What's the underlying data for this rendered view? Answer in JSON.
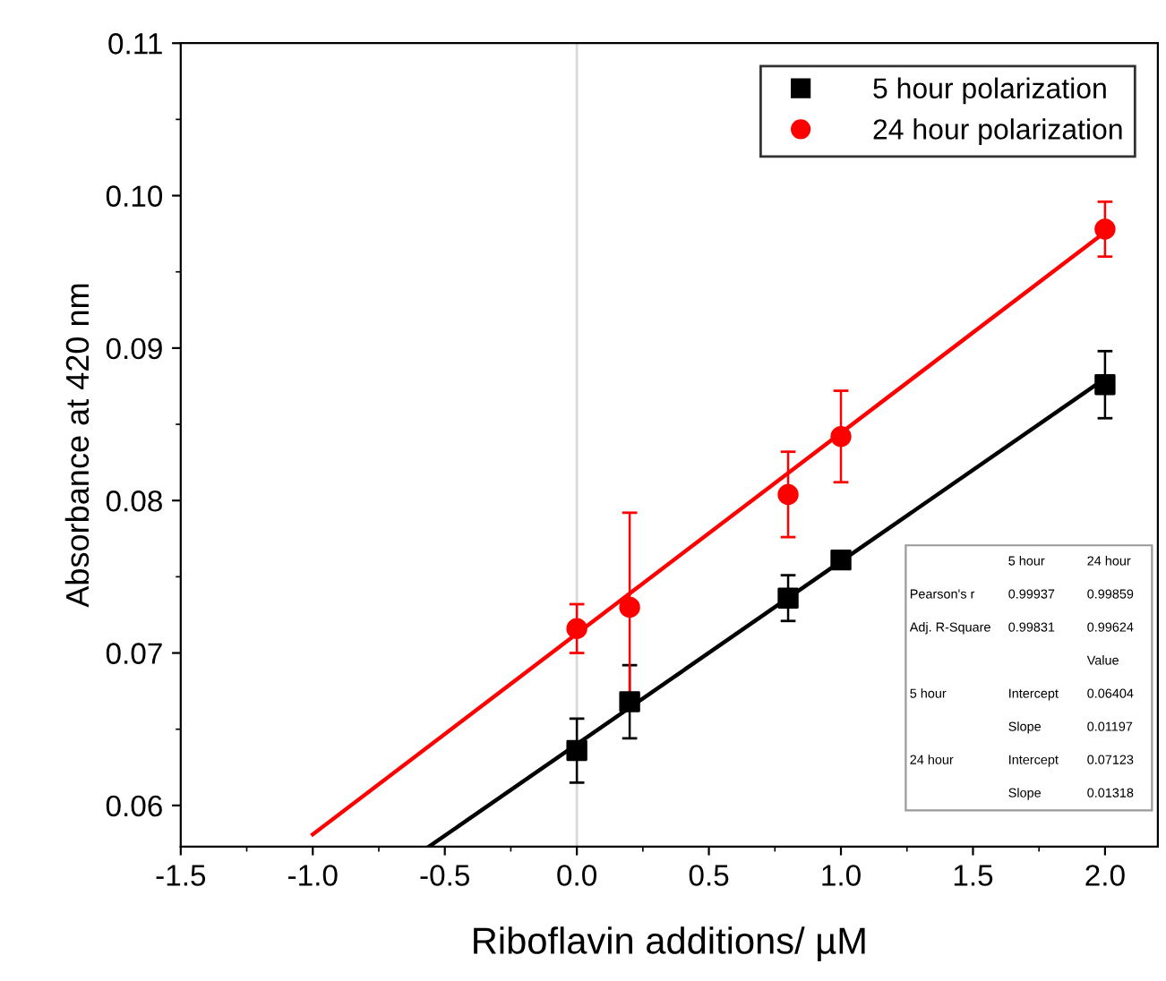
{
  "chart_data": {
    "type": "scatter",
    "xlabel": "Riboflavin additions/ µM",
    "ylabel": "Absorbance at 420 nm",
    "xlim": [
      -1.5,
      2.2
    ],
    "xticks": [
      -1.5,
      {
        "value": -1.0,
        "label": "-1.0"
      },
      -0.5,
      {
        "value": 0.0,
        "label": "0.0"
      },
      0.5,
      {
        "value": 1.0,
        "label": "1.0"
      },
      1.5,
      {
        "value": 2.0,
        "label": "2.0"
      }
    ],
    "ylim": [
      0.0573,
      0.11
    ],
    "yticks": [
      0.06,
      0.07,
      0.08,
      0.09,
      {
        "value": 0.1,
        "label": "0.10"
      },
      0.11
    ],
    "grid": false,
    "legend": "top right",
    "series": [
      {
        "name": "5 hour polarization",
        "marker": "square",
        "color": "#000000",
        "x": [
          0,
          0.2,
          0.8,
          1.0,
          2.0
        ],
        "values": [
          0.0636,
          0.0668,
          0.0736,
          0.0761,
          0.0876
        ],
        "errors": [
          0.0021,
          0.0024,
          0.0015,
          0.0005,
          0.0022
        ]
      },
      {
        "name": "24 hour polarization",
        "marker": "circle",
        "color": "#ff0000",
        "x": [
          0,
          0.2,
          0.8,
          1.0,
          2.0
        ],
        "values": [
          0.0716,
          0.073,
          0.0804,
          0.0842,
          0.0978
        ],
        "errors": [
          0.0016,
          0.0062,
          0.0028,
          0.003,
          0.0018
        ]
      },
      {
        "type": "line",
        "color": "#000000",
        "x": [
          -0.56,
          2.0
        ],
        "values": [
          0.0573,
          0.088
        ]
      },
      {
        "type": "line",
        "color": "#ff0000",
        "x": [
          -1.0,
          2.0
        ],
        "values": [
          0.0581,
          0.0976
        ]
      }
    ],
    "ref_lines": [
      {
        "axis": "x",
        "value": 0,
        "color": "#d9d9d9"
      }
    ],
    "annotations": [
      "5 hour",
      "24 hour",
      "Pearson's r",
      "0.99937",
      "0.99859",
      "Adj. R-Square",
      "0.99831",
      "0.99624",
      "Value",
      "5 hour",
      "Intercept",
      "0.06404",
      "Slope",
      "0.01197",
      "24 hour",
      "Intercept",
      "0.07123",
      "Slope",
      "0.01318"
    ]
  }
}
